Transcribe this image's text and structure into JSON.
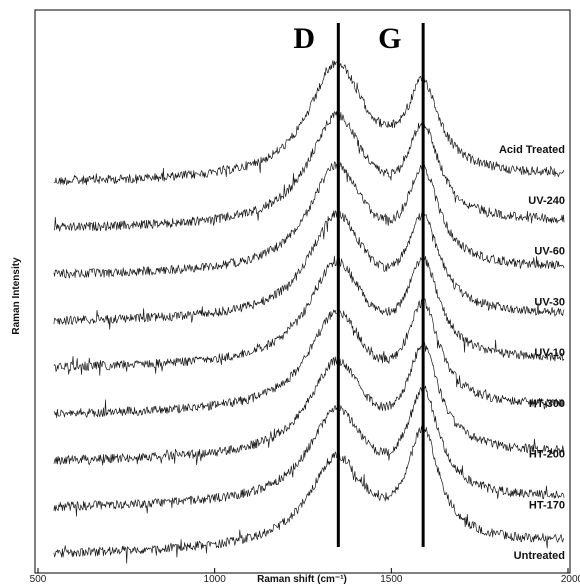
{
  "chart_data": {
    "type": "line",
    "title": "",
    "xlabel": "Raman shift (cm⁻¹)",
    "ylabel": "Raman Intensity",
    "xlim": [
      500,
      2000
    ],
    "xticks": [
      500,
      1000,
      1500,
      2000
    ],
    "y_ticks_shown": false,
    "stacked_offset": true,
    "grid": false,
    "legend": "none (series labelled inline at right)",
    "peak_markers": [
      {
        "label": "D",
        "x": 1350
      },
      {
        "label": "G",
        "x": 1590
      }
    ],
    "series": [
      {
        "name": "Acid Treated",
        "D_height": 1.0,
        "G_height": 0.75,
        "baseline_slope": 0.1
      },
      {
        "name": "UV-240",
        "D_height": 0.95,
        "G_height": 0.78,
        "baseline_slope": 0.1
      },
      {
        "name": "UV-60",
        "D_height": 0.92,
        "G_height": 0.8,
        "baseline_slope": 0.1
      },
      {
        "name": "UV-30",
        "D_height": 0.9,
        "G_height": 0.8,
        "baseline_slope": 0.1
      },
      {
        "name": "UV-10",
        "D_height": 0.88,
        "G_height": 0.82,
        "baseline_slope": 0.12
      },
      {
        "name": "HT-300",
        "D_height": 0.85,
        "G_height": 0.85,
        "baseline_slope": 0.12
      },
      {
        "name": "HT-200",
        "D_height": 0.82,
        "G_height": 0.88,
        "baseline_slope": 0.12
      },
      {
        "name": "HT-170",
        "D_height": 0.8,
        "G_height": 0.9,
        "baseline_slope": 0.14
      },
      {
        "name": "Untreated",
        "D_height": 0.78,
        "G_height": 0.95,
        "baseline_slope": 0.18
      }
    ]
  }
}
